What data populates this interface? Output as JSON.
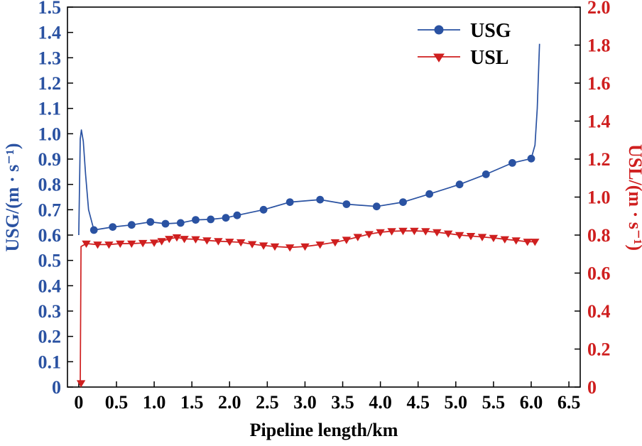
{
  "chart_data": {
    "type": "line",
    "title": "",
    "xlabel": "Pipeline length/km",
    "ylabel_left": "USG/(m · s⁻¹)",
    "ylabel_right": "USL/(m · s⁻¹)",
    "xlim": [
      -0.15,
      6.65
    ],
    "ylim_left": [
      0,
      1.5
    ],
    "ylim_right": [
      0,
      2.0
    ],
    "left_axis_color": "#2a52a2",
    "right_axis_color": "#cf1f1f",
    "frame_color": "#000000",
    "xticks": {
      "values": [
        0,
        0.5,
        1.0,
        1.5,
        2.0,
        2.5,
        3.0,
        3.5,
        4.0,
        4.5,
        5.0,
        5.5,
        6.0,
        6.5
      ],
      "labels": [
        "0",
        "0.5",
        "1.0",
        "1.5",
        "2.0",
        "2.5",
        "3.0",
        "3.5",
        "4.0",
        "4.5",
        "5.0",
        "5.5",
        "6.0",
        "6.5"
      ]
    },
    "yticks_left": {
      "values": [
        0,
        0.1,
        0.2,
        0.3,
        0.4,
        0.5,
        0.6,
        0.7,
        0.8,
        0.9,
        1.0,
        1.1,
        1.2,
        1.3,
        1.4,
        1.5
      ],
      "labels": [
        "0",
        "0.1",
        "0.2",
        "0.3",
        "0.4",
        "0.5",
        "0.6",
        "0.7",
        "0.8",
        "0.9",
        "1.0",
        "1.1",
        "1.2",
        "1.3",
        "1.4",
        "1.5"
      ]
    },
    "yticks_right": {
      "values": [
        0,
        0.2,
        0.4,
        0.6,
        0.8,
        1.0,
        1.2,
        1.4,
        1.6,
        1.8,
        2.0
      ],
      "labels": [
        "0",
        "0.2",
        "0.4",
        "0.6",
        "0.8",
        "1.0",
        "1.2",
        "1.4",
        "1.6",
        "1.8",
        "2.0"
      ]
    },
    "legend": [
      {
        "label": "USG",
        "color": "#2a52a2",
        "marker": "circle"
      },
      {
        "label": "USL",
        "color": "#cf1f1f",
        "marker": "triangle-down"
      }
    ],
    "series": [
      {
        "name": "USG",
        "axis": "left",
        "color": "#2a52a2",
        "marker": "circle",
        "line": [
          [
            0.0,
            0.6
          ],
          [
            0.02,
            0.98
          ],
          [
            0.035,
            1.015
          ],
          [
            0.06,
            0.97
          ],
          [
            0.09,
            0.84
          ],
          [
            0.13,
            0.7
          ],
          [
            0.2,
            0.62
          ],
          [
            0.45,
            0.632
          ],
          [
            0.7,
            0.64
          ],
          [
            0.95,
            0.652
          ],
          [
            1.15,
            0.645
          ],
          [
            1.35,
            0.648
          ],
          [
            1.55,
            0.66
          ],
          [
            1.75,
            0.662
          ],
          [
            1.95,
            0.668
          ],
          [
            2.1,
            0.678
          ],
          [
            2.45,
            0.7
          ],
          [
            2.8,
            0.73
          ],
          [
            3.2,
            0.74
          ],
          [
            3.55,
            0.722
          ],
          [
            3.95,
            0.713
          ],
          [
            4.3,
            0.73
          ],
          [
            4.65,
            0.762
          ],
          [
            5.05,
            0.8
          ],
          [
            5.4,
            0.84
          ],
          [
            5.75,
            0.885
          ],
          [
            6.0,
            0.902
          ],
          [
            6.05,
            0.955
          ],
          [
            6.08,
            1.1
          ],
          [
            6.11,
            1.355
          ]
        ],
        "markers": [
          [
            0.2,
            0.62
          ],
          [
            0.45,
            0.632
          ],
          [
            0.7,
            0.64
          ],
          [
            0.95,
            0.652
          ],
          [
            1.15,
            0.645
          ],
          [
            1.35,
            0.648
          ],
          [
            1.55,
            0.66
          ],
          [
            1.75,
            0.662
          ],
          [
            1.95,
            0.668
          ],
          [
            2.1,
            0.678
          ],
          [
            2.45,
            0.7
          ],
          [
            2.8,
            0.73
          ],
          [
            3.2,
            0.74
          ],
          [
            3.55,
            0.722
          ],
          [
            3.95,
            0.713
          ],
          [
            4.3,
            0.73
          ],
          [
            4.65,
            0.762
          ],
          [
            5.05,
            0.8
          ],
          [
            5.4,
            0.84
          ],
          [
            5.75,
            0.885
          ],
          [
            6.0,
            0.902
          ]
        ]
      },
      {
        "name": "USL",
        "axis": "right",
        "color": "#cf1f1f",
        "marker": "triangle-down",
        "line": [
          [
            0.02,
            0.01
          ],
          [
            0.03,
            0.74
          ],
          [
            0.1,
            0.755
          ],
          [
            0.25,
            0.75
          ],
          [
            0.4,
            0.75
          ],
          [
            0.55,
            0.755
          ],
          [
            0.7,
            0.755
          ],
          [
            0.85,
            0.758
          ],
          [
            1.0,
            0.76
          ],
          [
            1.1,
            0.768
          ],
          [
            1.2,
            0.78
          ],
          [
            1.3,
            0.788
          ],
          [
            1.4,
            0.78
          ],
          [
            1.55,
            0.778
          ],
          [
            1.7,
            0.772
          ],
          [
            1.85,
            0.768
          ],
          [
            2.0,
            0.765
          ],
          [
            2.15,
            0.762
          ],
          [
            2.3,
            0.752
          ],
          [
            2.45,
            0.745
          ],
          [
            2.6,
            0.74
          ],
          [
            2.8,
            0.735
          ],
          [
            3.0,
            0.74
          ],
          [
            3.2,
            0.75
          ],
          [
            3.4,
            0.762
          ],
          [
            3.55,
            0.775
          ],
          [
            3.7,
            0.79
          ],
          [
            3.85,
            0.805
          ],
          [
            4.0,
            0.815
          ],
          [
            4.15,
            0.82
          ],
          [
            4.3,
            0.822
          ],
          [
            4.45,
            0.822
          ],
          [
            4.6,
            0.82
          ],
          [
            4.75,
            0.815
          ],
          [
            4.9,
            0.808
          ],
          [
            5.05,
            0.8
          ],
          [
            5.2,
            0.795
          ],
          [
            5.35,
            0.79
          ],
          [
            5.5,
            0.785
          ],
          [
            5.65,
            0.778
          ],
          [
            5.8,
            0.772
          ],
          [
            5.95,
            0.765
          ],
          [
            6.05,
            0.765
          ]
        ],
        "markers": [
          [
            0.03,
            0.02
          ],
          [
            0.1,
            0.755
          ],
          [
            0.25,
            0.75
          ],
          [
            0.4,
            0.75
          ],
          [
            0.55,
            0.755
          ],
          [
            0.7,
            0.755
          ],
          [
            0.85,
            0.758
          ],
          [
            1.0,
            0.76
          ],
          [
            1.1,
            0.768
          ],
          [
            1.2,
            0.78
          ],
          [
            1.3,
            0.788
          ],
          [
            1.4,
            0.78
          ],
          [
            1.55,
            0.778
          ],
          [
            1.7,
            0.772
          ],
          [
            1.85,
            0.768
          ],
          [
            2.0,
            0.765
          ],
          [
            2.15,
            0.762
          ],
          [
            2.3,
            0.752
          ],
          [
            2.45,
            0.745
          ],
          [
            2.6,
            0.74
          ],
          [
            2.8,
            0.735
          ],
          [
            3.0,
            0.74
          ],
          [
            3.2,
            0.75
          ],
          [
            3.4,
            0.762
          ],
          [
            3.55,
            0.775
          ],
          [
            3.7,
            0.79
          ],
          [
            3.85,
            0.805
          ],
          [
            4.0,
            0.815
          ],
          [
            4.15,
            0.82
          ],
          [
            4.3,
            0.822
          ],
          [
            4.45,
            0.822
          ],
          [
            4.6,
            0.82
          ],
          [
            4.75,
            0.815
          ],
          [
            4.9,
            0.808
          ],
          [
            5.05,
            0.8
          ],
          [
            5.2,
            0.795
          ],
          [
            5.35,
            0.79
          ],
          [
            5.5,
            0.785
          ],
          [
            5.65,
            0.778
          ],
          [
            5.8,
            0.772
          ],
          [
            5.95,
            0.765
          ],
          [
            6.05,
            0.765
          ]
        ]
      }
    ]
  }
}
